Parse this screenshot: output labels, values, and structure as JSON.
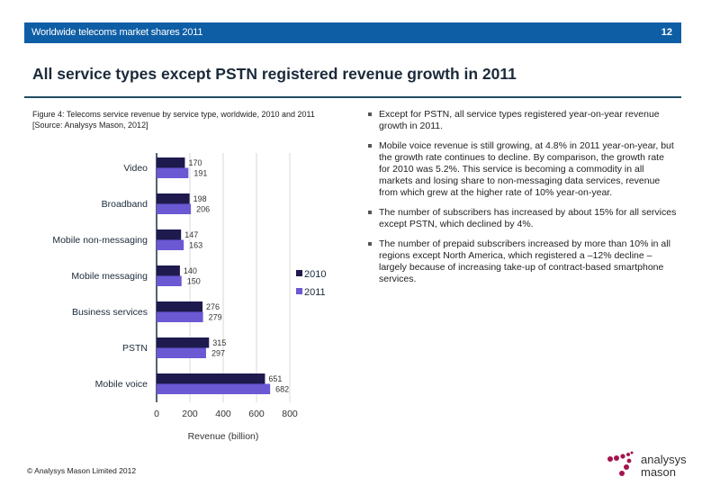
{
  "header": {
    "title": "Worldwide telecoms market shares 2011",
    "page_number": "12",
    "color": "#0e5ea6"
  },
  "slide_title": "All service types except PSTN registered revenue growth in 2011",
  "figure_caption": "Figure 4: Telecoms service revenue by service type, worldwide, 2010 and 2011 [Source: Analysys Mason, 2012]",
  "bullets": [
    "Except for PSTN, all service types registered year-on-year revenue growth in 2011.",
    "Mobile voice revenue is still growing, at 4.8% in 2011 year-on-year, but the growth rate continues to decline. By comparison, the growth rate for 2010 was 5.2%. This service is becoming a commodity in all markets and losing share to non-messaging data services, revenue from which grew at the higher rate of 10% year-on-year.",
    "The number of subscribers has increased by about 15% for all services except PSTN, which declined by 4%.",
    "The number of prepaid subscribers increased by more than 10% in all regions except North America, which registered a –12% decline – largely because of increasing take-up of contract-based smartphone services."
  ],
  "footer": "© Analysys Mason Limited 2012",
  "logo": {
    "line1": "analysys",
    "line2": "mason",
    "dot_color": "#a4144f"
  },
  "chart_data": {
    "type": "bar",
    "orientation": "horizontal",
    "categories": [
      "Video",
      "Broadband",
      "Mobile non-messaging",
      "Mobile messaging",
      "Business services",
      "PSTN",
      "Mobile voice"
    ],
    "series": [
      {
        "name": "2010",
        "color": "#1e1a4e",
        "values": [
          170,
          198,
          147,
          140,
          276,
          315,
          651
        ]
      },
      {
        "name": "2011",
        "color": "#6b58d3",
        "values": [
          191,
          206,
          163,
          150,
          279,
          297,
          682
        ]
      }
    ],
    "xlabel": "Revenue (billion)",
    "xlim": [
      0,
      800
    ],
    "xticks": [
      "0",
      "200",
      "400",
      "600",
      "800"
    ],
    "grid": true,
    "legend": "right",
    "data_labels": true
  }
}
